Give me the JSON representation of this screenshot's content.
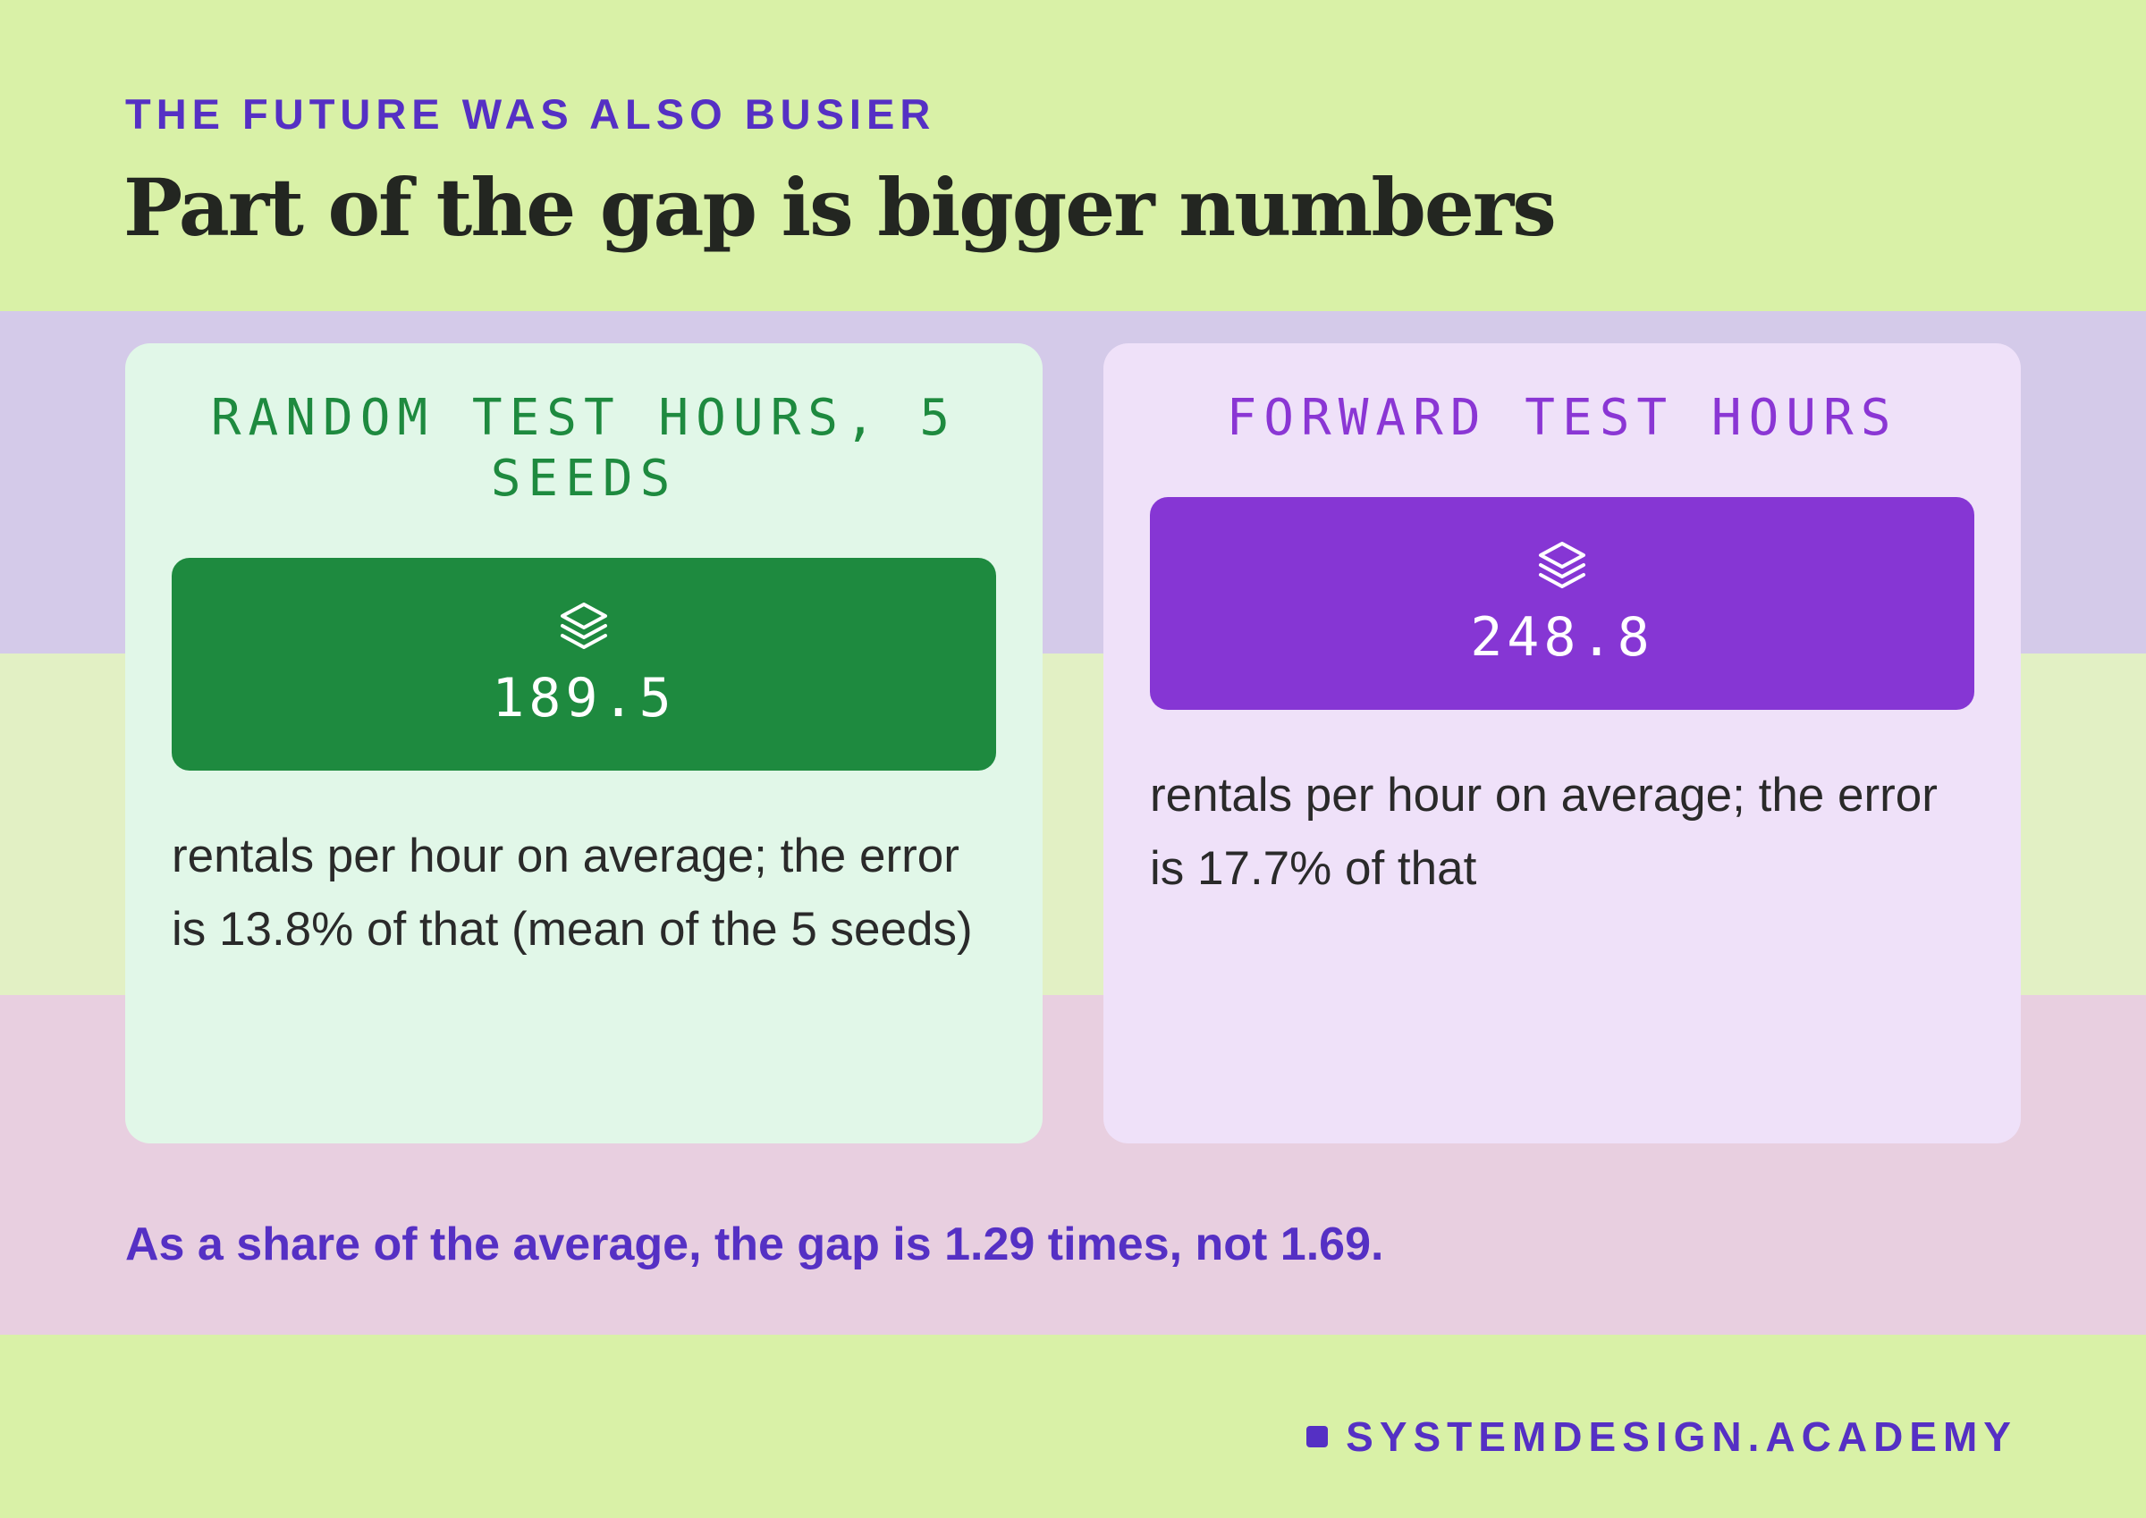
{
  "header": {
    "eyebrow": "THE FUTURE WAS ALSO BUSIER",
    "title": "Part of the gap is bigger numbers"
  },
  "cards": [
    {
      "heading": "RANDOM TEST HOURS, 5 SEEDS",
      "icon": "layers-icon",
      "value": "189.5",
      "text": "rentals per hour on average; the error is 13.8% of that (mean of the 5 seeds)",
      "color": "#1e8a3f"
    },
    {
      "heading": "FORWARD TEST HOURS",
      "icon": "layers-icon",
      "value": "248.8",
      "text": "rentals per hour on average; the error is 17.7% of that",
      "color": "#8636d4"
    }
  ],
  "note": "As a share of the average, the gap is 1.29 times, not 1.69.",
  "brand": "SYSTEMDESIGN.ACADEMY",
  "colors": {
    "accent": "#5530c4",
    "background": "#d9f1a7"
  }
}
